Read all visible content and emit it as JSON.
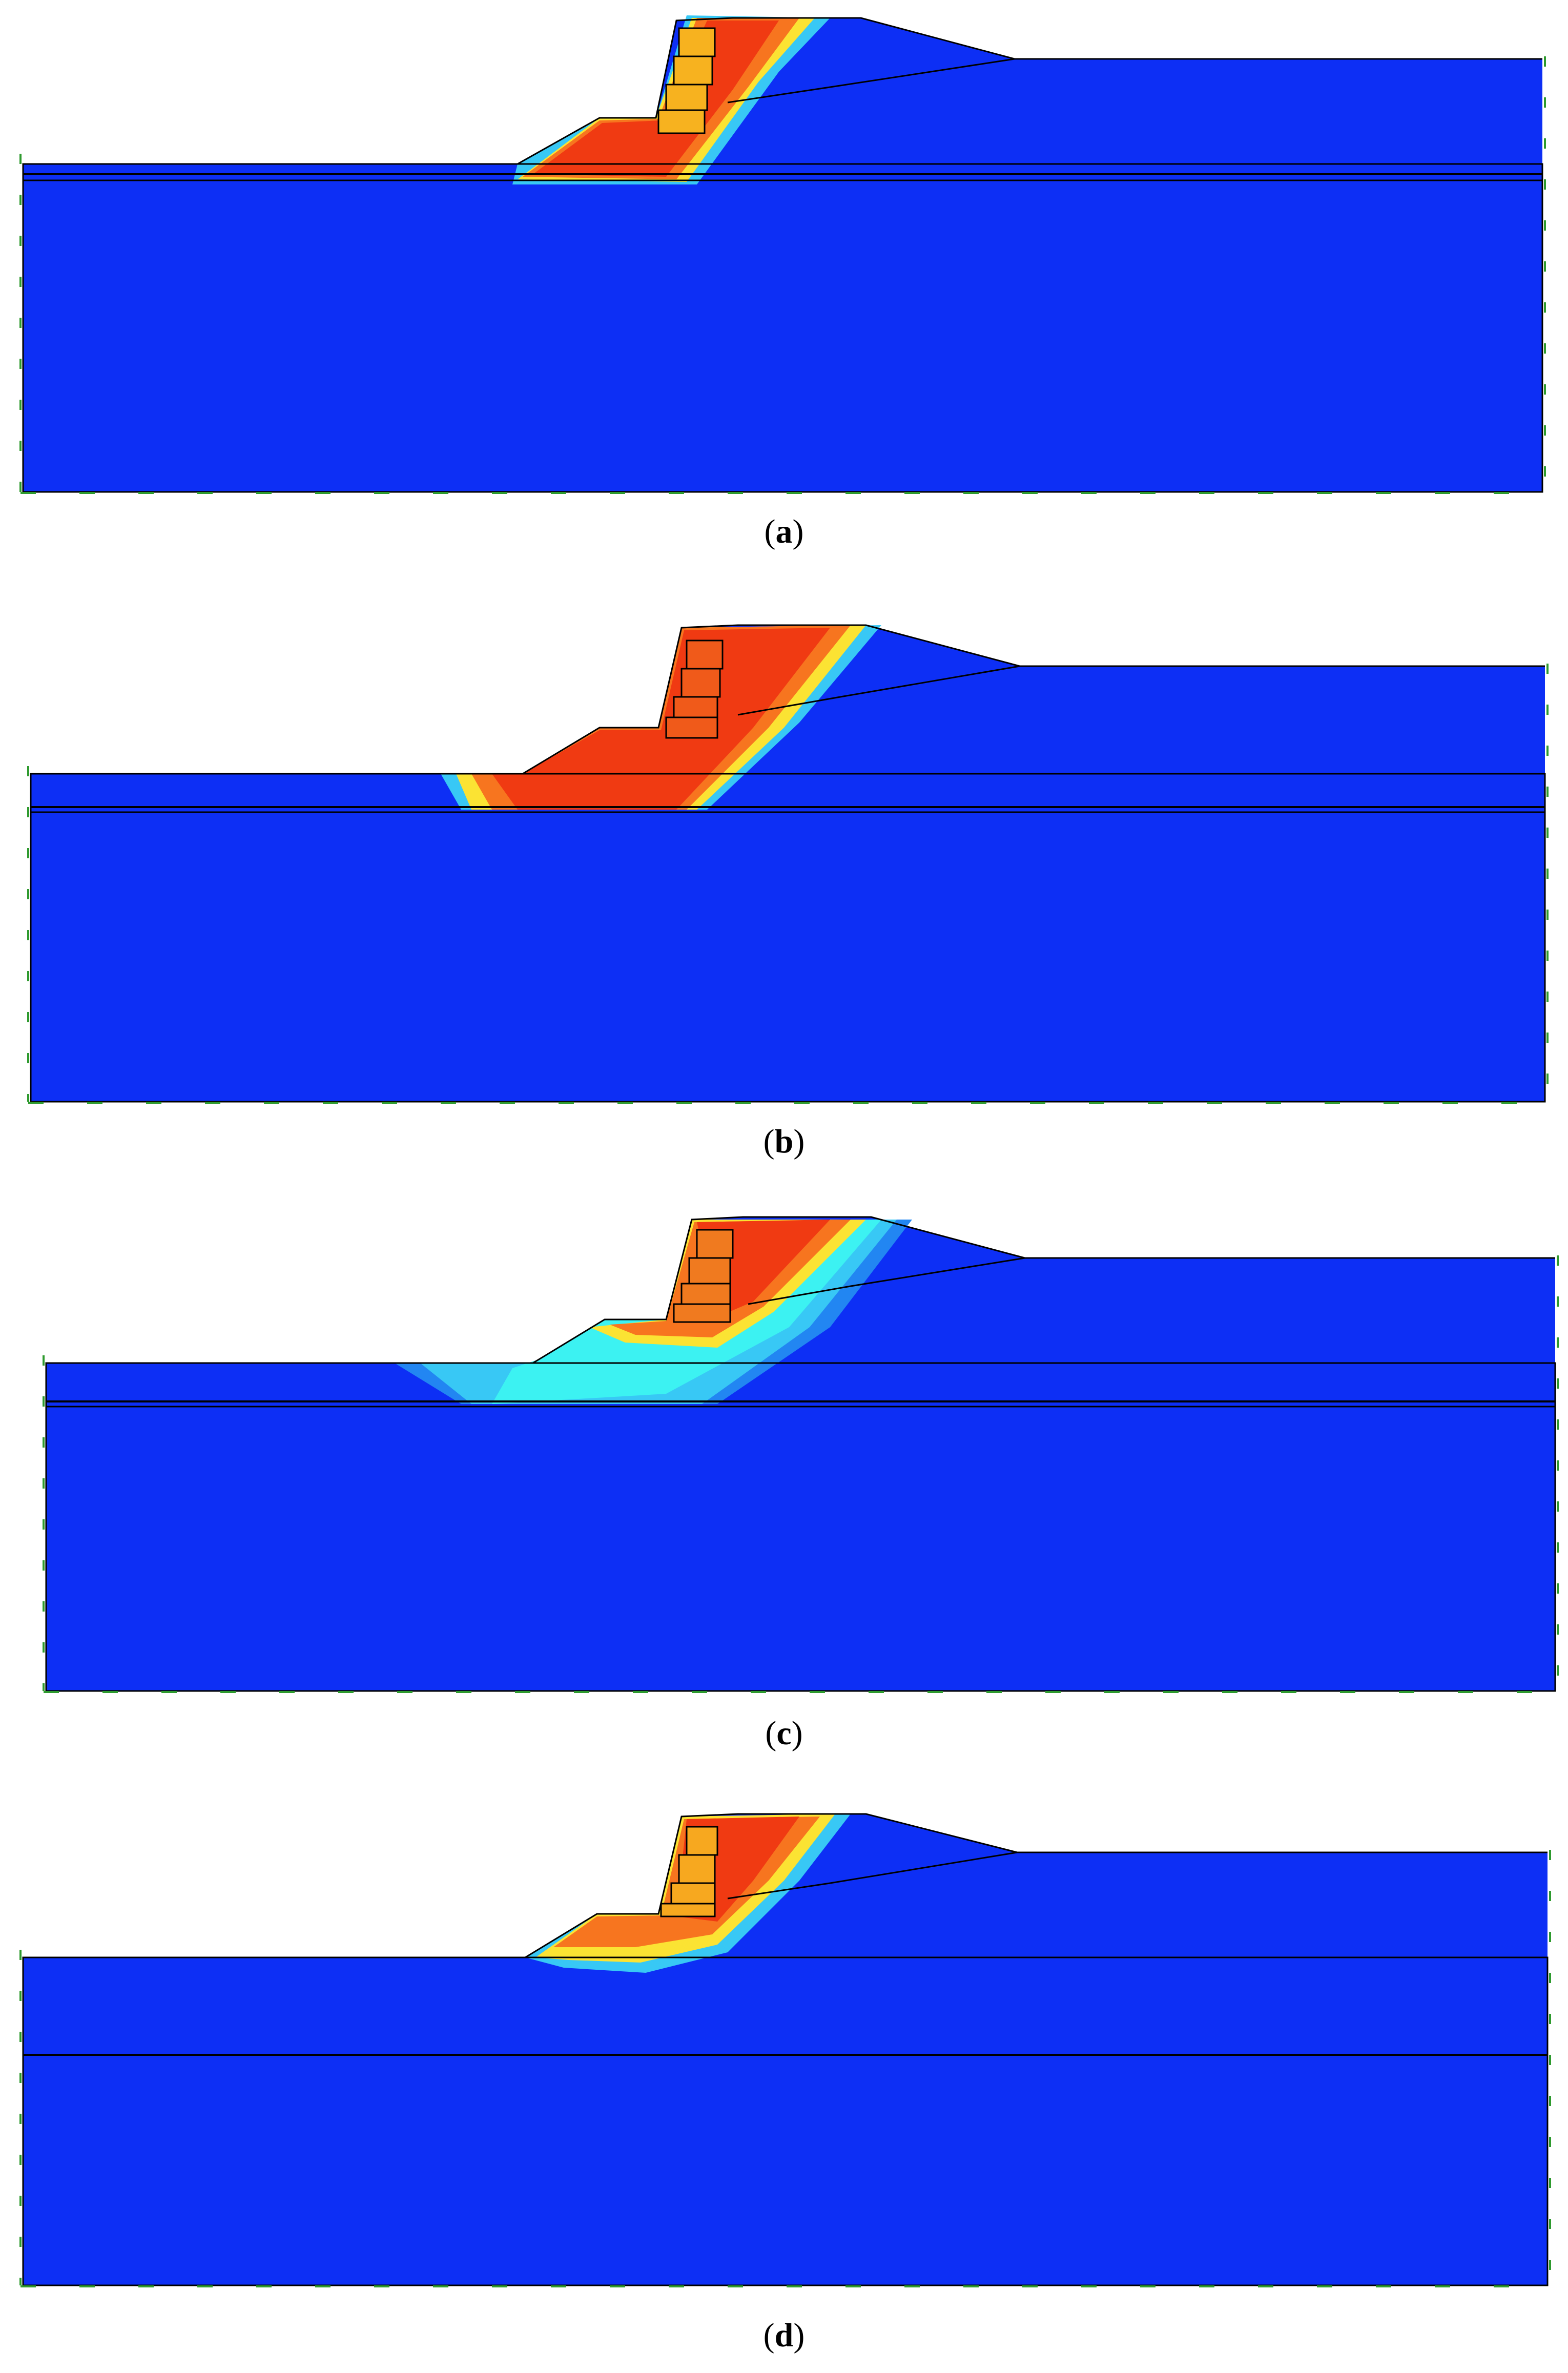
{
  "colors": {
    "background": "#ffffff",
    "soil": "#0d2ff5",
    "red": "#f03a12",
    "orange": "#f7751f",
    "yellow": "#fbe333",
    "light_blue": "#38c8f5",
    "cyan": "#3cf2f2",
    "outline": "#000000",
    "boundary_marker": "#2e9a2e"
  },
  "panels": [
    {
      "id": "a",
      "caption_open": "(",
      "caption_letter": "a",
      "caption_close": ")"
    },
    {
      "id": "b",
      "caption_open": "(",
      "caption_letter": "b",
      "caption_close": ")"
    },
    {
      "id": "c",
      "caption_open": "(",
      "caption_letter": "c",
      "caption_close": ")"
    },
    {
      "id": "d",
      "caption_open": "(",
      "caption_letter": "d",
      "caption_close": ")"
    }
  ]
}
